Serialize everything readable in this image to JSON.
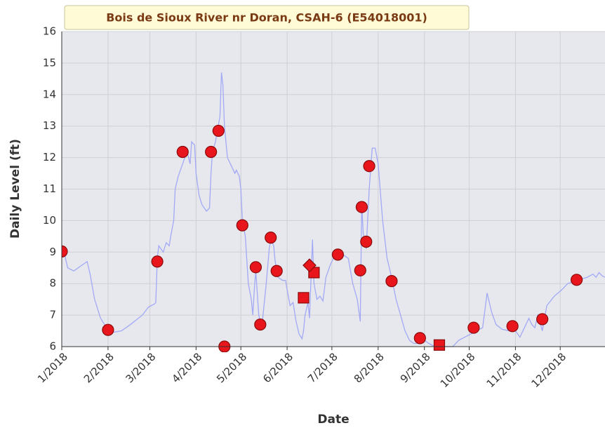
{
  "chart_data": {
    "type": "line",
    "title": "Bois de Sioux River nr Doran, CSAH-6 (E54018001)",
    "x_label": "Date",
    "y_label": "Daily Level (ft)",
    "xlim": [
      0,
      364
    ],
    "ylim": [
      6,
      16
    ],
    "xticks": [
      {
        "value": 0,
        "label": "1/2018"
      },
      {
        "value": 31,
        "label": "2/2018"
      },
      {
        "value": 59,
        "label": "3/2018"
      },
      {
        "value": 90,
        "label": "4/2018"
      },
      {
        "value": 120,
        "label": "5/2018"
      },
      {
        "value": 151,
        "label": "6/2018"
      },
      {
        "value": 181,
        "label": "7/2018"
      },
      {
        "value": 212,
        "label": "8/2018"
      },
      {
        "value": 243,
        "label": "9/2018"
      },
      {
        "value": 273,
        "label": "10/2018"
      },
      {
        "value": 304,
        "label": "11/2018"
      },
      {
        "value": 334,
        "label": "12/2018"
      }
    ],
    "yticks": [
      6,
      7,
      8,
      9,
      10,
      11,
      12,
      13,
      14,
      15,
      16
    ],
    "grid": true,
    "series": [
      {
        "marker": "line",
        "color": "#a3a9f5",
        "x": [
          0,
          2,
          4,
          8,
          14,
          17,
          19,
          22,
          26,
          30,
          34,
          40,
          46,
          54,
          58,
          62,
          63,
          64,
          65,
          68,
          70,
          72,
          73,
          75,
          76,
          78,
          81,
          84,
          86,
          87,
          89,
          90,
          92,
          94,
          97,
          99,
          100,
          101,
          103,
          104,
          106,
          107,
          108,
          109,
          111,
          113,
          116,
          117,
          119,
          120,
          121,
          123,
          125,
          127,
          128,
          129,
          130,
          132,
          134,
          137,
          139,
          140,
          142,
          143,
          145,
          148,
          150,
          151,
          153,
          155,
          157,
          159,
          161,
          162,
          163,
          165,
          166,
          168,
          169,
          171,
          173,
          175,
          177,
          180,
          183,
          186,
          189,
          192,
          195,
          198,
          200,
          201,
          202,
          204,
          206,
          208,
          210,
          212,
          215,
          218,
          221,
          224,
          227,
          230,
          233,
          236,
          240,
          243,
          246,
          250,
          254,
          258,
          262,
          266,
          270,
          274,
          278,
          282,
          285,
          288,
          291,
          295,
          300,
          304,
          307,
          310,
          313,
          315,
          317,
          319,
          322,
          325,
          330,
          335,
          339,
          345,
          352,
          356,
          358,
          360,
          362,
          364
        ],
        "values": [
          9.0,
          8.9,
          8.5,
          8.4,
          8.6,
          8.7,
          8.3,
          7.5,
          6.9,
          6.6,
          6.45,
          6.5,
          6.7,
          7.0,
          7.25,
          7.35,
          7.4,
          8.8,
          9.2,
          9.0,
          9.3,
          9.2,
          9.5,
          10.0,
          11.0,
          11.4,
          11.8,
          12.2,
          11.8,
          12.5,
          12.4,
          11.5,
          10.8,
          10.5,
          10.3,
          10.4,
          11.5,
          12.2,
          12.5,
          12.8,
          13.3,
          14.7,
          14.3,
          13.0,
          12.0,
          11.8,
          11.5,
          11.6,
          11.4,
          11.0,
          10.0,
          9.5,
          8.0,
          7.5,
          7.0,
          7.8,
          8.4,
          7.0,
          6.6,
          8.0,
          9.1,
          9.4,
          9.2,
          8.7,
          8.2,
          8.1,
          8.1,
          7.8,
          7.3,
          7.4,
          6.8,
          6.4,
          6.25,
          6.5,
          7.0,
          7.4,
          6.9,
          9.4,
          8.0,
          7.5,
          7.6,
          7.45,
          8.2,
          8.6,
          8.9,
          8.9,
          8.9,
          8.8,
          8.0,
          7.5,
          6.8,
          10.5,
          9.6,
          9.1,
          11.0,
          12.3,
          12.3,
          11.8,
          10.0,
          8.8,
          8.2,
          7.5,
          7.0,
          6.5,
          6.2,
          6.1,
          6.1,
          6.2,
          6.1,
          6.0,
          6.0,
          6.0,
          6.0,
          6.2,
          6.3,
          6.4,
          6.5,
          6.6,
          7.7,
          7.1,
          6.7,
          6.55,
          6.5,
          6.5,
          6.3,
          6.6,
          6.9,
          6.7,
          6.6,
          7.0,
          6.5,
          7.3,
          7.6,
          7.8,
          8.0,
          8.1,
          8.2,
          8.3,
          8.2,
          8.35,
          8.25,
          8.2
        ]
      },
      {
        "marker": "circle",
        "color": "#e8161c",
        "x": [
          0,
          31,
          64,
          81,
          100,
          105,
          109,
          121,
          130,
          133,
          140,
          144,
          185,
          200,
          201,
          204,
          206,
          221,
          240,
          276,
          302,
          322,
          345
        ],
        "values": [
          9.02,
          6.53,
          8.7,
          12.18,
          12.18,
          12.85,
          6.0,
          9.85,
          8.52,
          6.7,
          9.46,
          8.4,
          8.92,
          8.42,
          10.43,
          9.33,
          11.73,
          8.08,
          6.27,
          6.6,
          6.65,
          6.87,
          8.12
        ]
      },
      {
        "marker": "square",
        "color": "#e8161c",
        "x": [
          162,
          169,
          253
        ],
        "values": [
          7.55,
          8.35,
          6.05
        ]
      },
      {
        "marker": "diamond",
        "color": "#e8161c",
        "x": [
          166
        ],
        "values": [
          8.58
        ]
      }
    ]
  }
}
